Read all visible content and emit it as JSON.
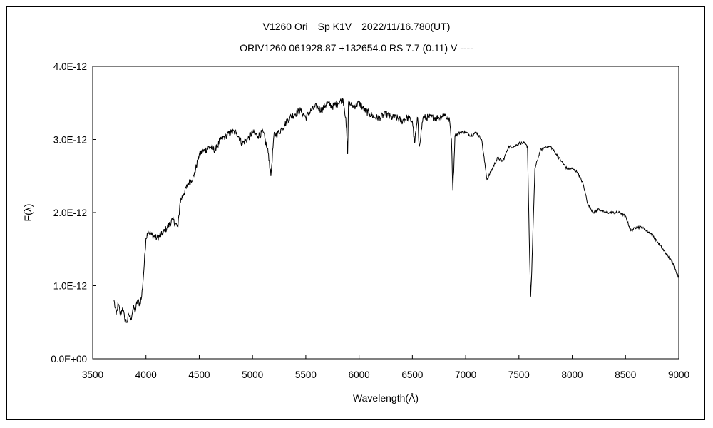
{
  "chart_data": {
    "type": "line",
    "title": "V1260 Ori　Sp K1V　2022/11/16.780(UT)",
    "subtitle": "ORIV1260 061928.87 +132654.0 RS 7.7 (0.11) V ----",
    "xlabel": "Wavelength(Å)",
    "ylabel": "F(λ)",
    "xlim": [
      3500,
      9000
    ],
    "ylim": [
      0,
      4e-12
    ],
    "grid": false,
    "legend": "none",
    "x_ticks": [
      "3500",
      "4000",
      "4500",
      "5000",
      "5500",
      "6000",
      "6500",
      "7000",
      "7500",
      "8000",
      "8500",
      "9000"
    ],
    "y_ticks": [
      "0.0E+00",
      "1.0E-12",
      "2.0E-12",
      "3.0E-12",
      "4.0E-12"
    ],
    "line_color": "#000000",
    "series": [
      {
        "x": [
          3700,
          3720,
          3740,
          3760,
          3780,
          3800,
          3820,
          3840,
          3860,
          3880,
          3900,
          3920,
          3940,
          3960,
          3980,
          4000,
          4020,
          4050,
          4100,
          4150,
          4200,
          4250,
          4300,
          4320,
          4350,
          4400,
          4450,
          4500,
          4550,
          4600,
          4650,
          4700,
          4750,
          4800,
          4850,
          4900,
          4950,
          5000,
          5050,
          5100,
          5150,
          5172,
          5200,
          5250,
          5300,
          5350,
          5400,
          5450,
          5500,
          5550,
          5600,
          5650,
          5700,
          5750,
          5800,
          5850,
          5875,
          5893,
          5900,
          5950,
          6000,
          6050,
          6100,
          6150,
          6200,
          6250,
          6300,
          6350,
          6400,
          6450,
          6500,
          6520,
          6550,
          6563,
          6600,
          6650,
          6700,
          6750,
          6800,
          6850,
          6867,
          6880,
          6900,
          6950,
          7000,
          7050,
          7100,
          7150,
          7200,
          7250,
          7300,
          7350,
          7400,
          7450,
          7500,
          7550,
          7580,
          7600,
          7610,
          7620,
          7650,
          7700,
          7750,
          7800,
          7850,
          7900,
          7950,
          8000,
          8050,
          8100,
          8150,
          8200,
          8250,
          8300,
          8350,
          8400,
          8450,
          8500,
          8550,
          8600,
          8650,
          8700,
          8750,
          8800,
          8850,
          8900,
          8950,
          9000
        ],
        "y": [
          8e-13,
          6e-13,
          7.5e-13,
          6e-13,
          7e-13,
          5.5e-13,
          5e-13,
          6e-13,
          5.5e-13,
          7e-13,
          6.5e-13,
          8e-13,
          7.5e-13,
          8.5e-13,
          1.2e-12,
          1.65e-12,
          1.75e-12,
          1.7e-12,
          1.65e-12,
          1.7e-12,
          1.8e-12,
          1.9e-12,
          1.8e-12,
          2.15e-12,
          2.25e-12,
          2.4e-12,
          2.5e-12,
          2.8e-12,
          2.85e-12,
          2.9e-12,
          2.85e-12,
          3e-12,
          3.05e-12,
          3.1e-12,
          3.1e-12,
          2.95e-12,
          3e-12,
          3.1e-12,
          3.05e-12,
          3.1e-12,
          2.8e-12,
          2.5e-12,
          3.05e-12,
          3.1e-12,
          3.2e-12,
          3.3e-12,
          3.35e-12,
          3.4e-12,
          3.3e-12,
          3.4e-12,
          3.45e-12,
          3.4e-12,
          3.5e-12,
          3.45e-12,
          3.5e-12,
          3.55e-12,
          3.3e-12,
          2.8e-12,
          3.5e-12,
          3.45e-12,
          3.5e-12,
          3.4e-12,
          3.35e-12,
          3.3e-12,
          3.3e-12,
          3.35e-12,
          3.3e-12,
          3.3e-12,
          3.25e-12,
          3.3e-12,
          3.25e-12,
          2.95e-12,
          3.3e-12,
          2.9e-12,
          3.3e-12,
          3.3e-12,
          3.3e-12,
          3.3e-12,
          3.35e-12,
          3.25e-12,
          3e-12,
          2.3e-12,
          3.05e-12,
          3.1e-12,
          3.1e-12,
          3.05e-12,
          3.1e-12,
          3e-12,
          2.45e-12,
          2.6e-12,
          2.75e-12,
          2.7e-12,
          2.9e-12,
          2.9e-12,
          2.95e-12,
          2.95e-12,
          2.9e-12,
          1.4e-12,
          8.5e-13,
          1.2e-12,
          2.6e-12,
          2.85e-12,
          2.9e-12,
          2.9e-12,
          2.8e-12,
          2.7e-12,
          2.6e-12,
          2.6e-12,
          2.55e-12,
          2.4e-12,
          2.1e-12,
          2e-12,
          2.05e-12,
          2e-12,
          2e-12,
          2e-12,
          2e-12,
          1.95e-12,
          1.75e-12,
          1.8e-12,
          1.8e-12,
          1.75e-12,
          1.7e-12,
          1.6e-12,
          1.5e-12,
          1.4e-12,
          1.3e-12,
          1.1e-12
        ]
      }
    ]
  }
}
